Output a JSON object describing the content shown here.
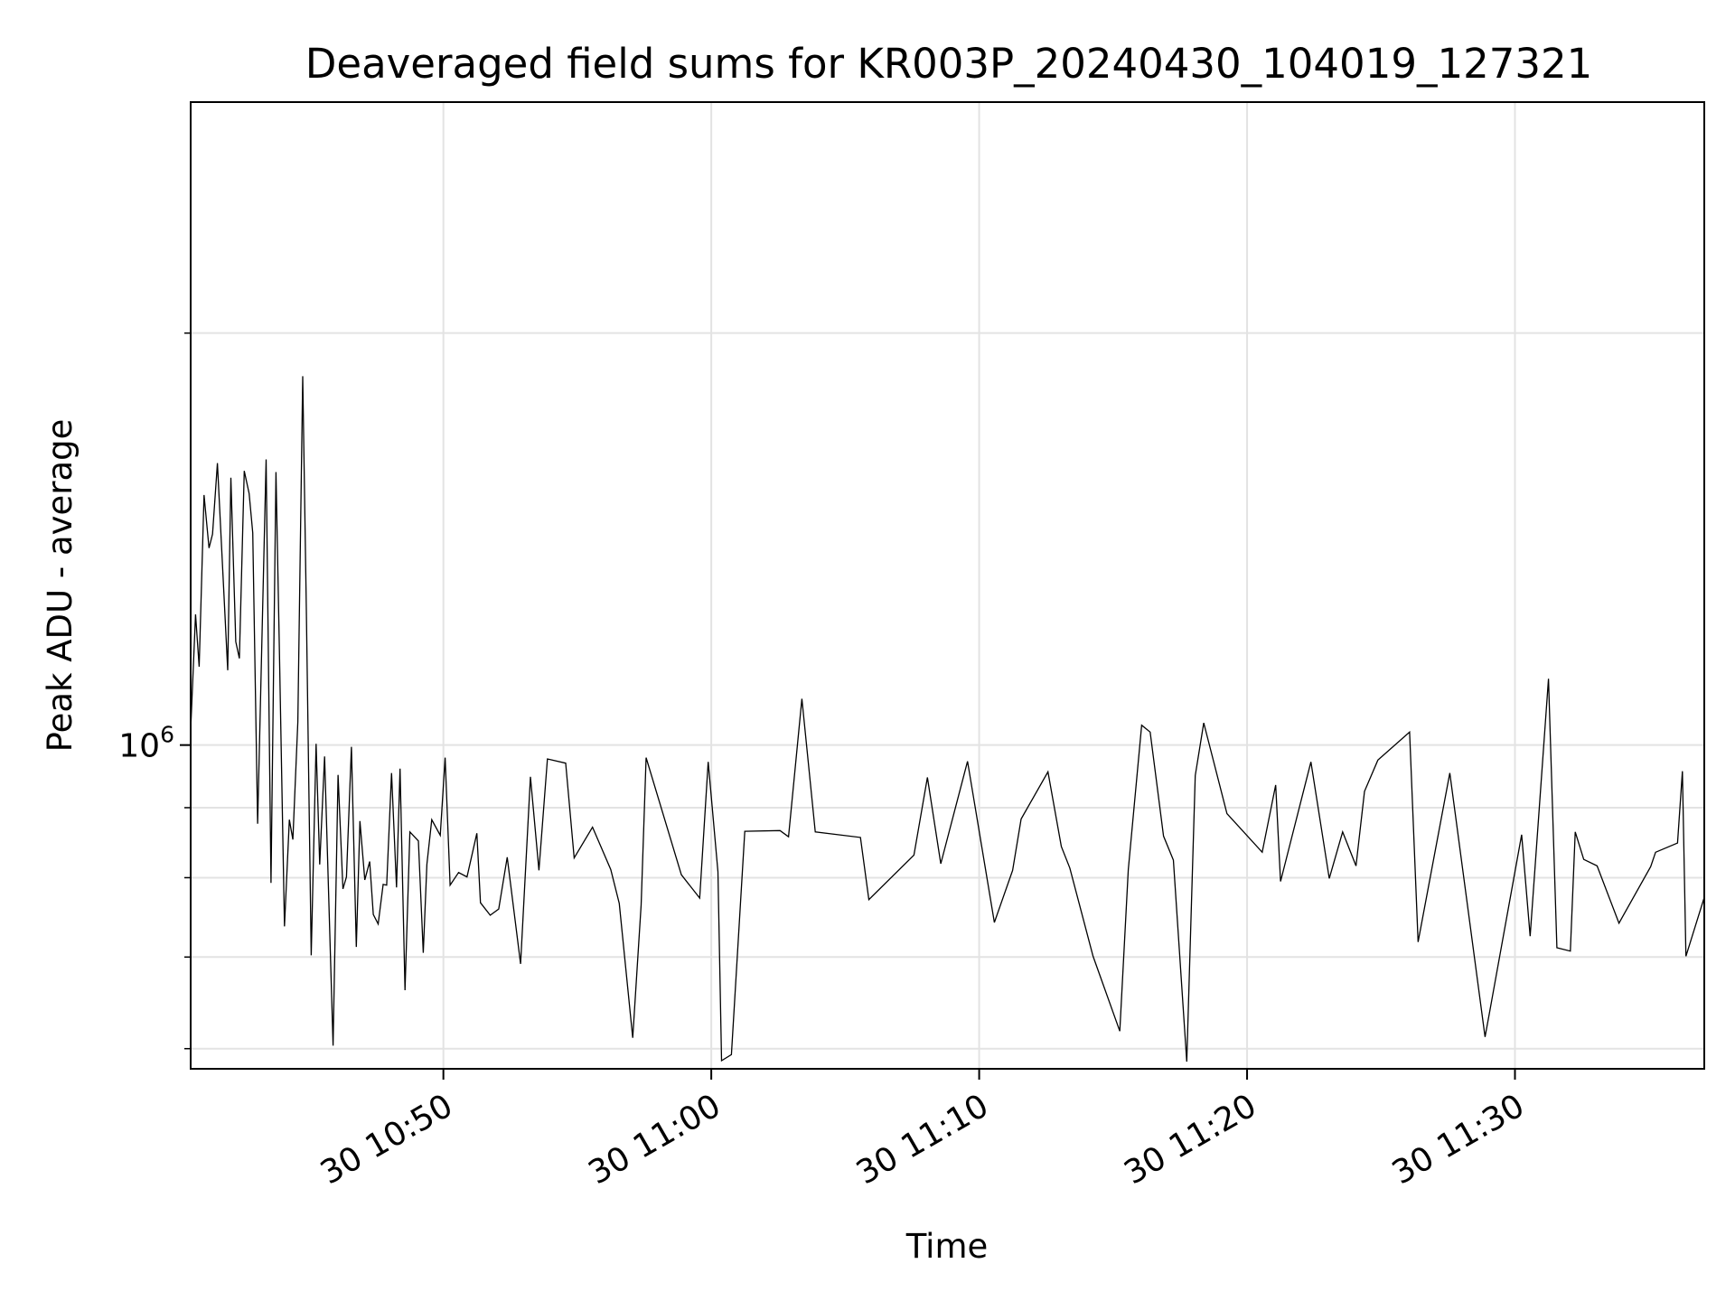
{
  "chart_data": {
    "type": "line",
    "title": "Deaveraged field sums for KR003P_20240430_104019_127321",
    "xlabel": "Time",
    "ylabel": "Peak ADU - average",
    "yscale": "log",
    "grid": true,
    "xlim": [
      "2024-04-30 10:40:34",
      "2024-04-30 11:37:04"
    ],
    "ylim": [
      580000,
      2950000
    ],
    "x_ticks": [
      {
        "value": "2024-04-30 10:50",
        "label": "30 10:50"
      },
      {
        "value": "2024-04-30 11:00",
        "label": "30 11:00"
      },
      {
        "value": "2024-04-30 11:10",
        "label": "30 11:10"
      },
      {
        "value": "2024-04-30 11:20",
        "label": "30 11:20"
      },
      {
        "value": "2024-04-30 11:30",
        "label": "30 11:30"
      }
    ],
    "y_major_ticks": [
      {
        "value": 1000000,
        "base": "10",
        "exp": "6"
      }
    ],
    "y_minor_ticks": [
      600000,
      700000,
      800000,
      900000,
      2000000
    ],
    "series": [
      {
        "color": "#000000",
        "points": [
          [
            "2024-04-30 10:40:34",
            1026000
          ],
          [
            "2024-04-30 10:40:45",
            1246000
          ],
          [
            "2024-04-30 10:40:53",
            1141000
          ],
          [
            "2024-04-30 10:41:04",
            1523000
          ],
          [
            "2024-04-30 10:41:15",
            1393000
          ],
          [
            "2024-04-30 10:41:23",
            1426000
          ],
          [
            "2024-04-30 10:41:34",
            1607000
          ],
          [
            "2024-04-30 10:41:57",
            1134000
          ],
          [
            "2024-04-30 10:42:04",
            1568000
          ],
          [
            "2024-04-30 10:42:15",
            1190000
          ],
          [
            "2024-04-30 10:42:23",
            1157000
          ],
          [
            "2024-04-30 10:42:34",
            1586000
          ],
          [
            "2024-04-30 10:42:45",
            1527000
          ],
          [
            "2024-04-30 10:42:53",
            1429000
          ],
          [
            "2024-04-30 10:43:04",
            876000
          ],
          [
            "2024-04-30 10:43:23",
            1617000
          ],
          [
            "2024-04-30 10:43:34",
            793000
          ],
          [
            "2024-04-30 10:43:45",
            1583000
          ],
          [
            "2024-04-30 10:43:53",
            1162000
          ],
          [
            "2024-04-30 10:44:04",
            737000
          ],
          [
            "2024-04-30 10:44:15",
            882000
          ],
          [
            "2024-04-30 10:44:23",
            853000
          ],
          [
            "2024-04-30 10:44:34",
            1040000
          ],
          [
            "2024-04-30 10:44:45",
            1860000
          ],
          [
            "2024-04-30 10:44:53",
            1257000
          ],
          [
            "2024-04-30 10:45:04",
            702000
          ],
          [
            "2024-04-30 10:45:15",
            1002000
          ],
          [
            "2024-04-30 10:45:23",
            818000
          ],
          [
            "2024-04-30 10:45:34",
            981000
          ],
          [
            "2024-04-30 10:45:53",
            603000
          ],
          [
            "2024-04-30 10:46:04",
            951000
          ],
          [
            "2024-04-30 10:46:15",
            785000
          ],
          [
            "2024-04-30 10:46:23",
            801000
          ],
          [
            "2024-04-30 10:46:34",
            997000
          ],
          [
            "2024-04-30 10:46:45",
            712000
          ],
          [
            "2024-04-30 10:46:53",
            880000
          ],
          [
            "2024-04-30 10:47:04",
            797000
          ],
          [
            "2024-04-30 10:47:15",
            822000
          ],
          [
            "2024-04-30 10:47:23",
            752000
          ],
          [
            "2024-04-30 10:47:34",
            740000
          ],
          [
            "2024-04-30 10:47:45",
            791000
          ],
          [
            "2024-04-30 10:47:53",
            790000
          ],
          [
            "2024-04-30 10:48:04",
            954000
          ],
          [
            "2024-04-30 10:48:15",
            787000
          ],
          [
            "2024-04-30 10:48:23",
            961000
          ],
          [
            "2024-04-30 10:48:34",
            662000
          ],
          [
            "2024-04-30 10:48:45",
            864000
          ],
          [
            "2024-04-30 10:49:04",
            851000
          ],
          [
            "2024-04-30 10:49:15",
            705000
          ],
          [
            "2024-04-30 10:49:23",
            818000
          ],
          [
            "2024-04-30 10:49:34",
            882000
          ],
          [
            "2024-04-30 10:49:53",
            859000
          ],
          [
            "2024-04-30 10:50:04",
            979000
          ],
          [
            "2024-04-30 10:50:15",
            790000
          ],
          [
            "2024-04-30 10:50:34",
            807000
          ],
          [
            "2024-04-30 10:50:53",
            801000
          ],
          [
            "2024-04-30 10:51:15",
            862000
          ],
          [
            "2024-04-30 10:51:23",
            767000
          ],
          [
            "2024-04-30 10:51:45",
            751000
          ],
          [
            "2024-04-30 10:52:04",
            759000
          ],
          [
            "2024-04-30 10:52:23",
            828000
          ],
          [
            "2024-04-30 10:52:53",
            692000
          ],
          [
            "2024-04-30 10:53:15",
            948000
          ],
          [
            "2024-04-30 10:53:34",
            810000
          ],
          [
            "2024-04-30 10:53:53",
            977000
          ],
          [
            "2024-04-30 10:54:34",
            970000
          ],
          [
            "2024-04-30 10:54:53",
            827000
          ],
          [
            "2024-04-30 10:55:34",
            871000
          ],
          [
            "2024-04-30 10:56:15",
            811000
          ],
          [
            "2024-04-30 10:56:34",
            766000
          ],
          [
            "2024-04-30 10:57:04",
            611000
          ],
          [
            "2024-04-30 10:57:23",
            764000
          ],
          [
            "2024-04-30 10:57:34",
            979000
          ],
          [
            "2024-04-30 10:58:53",
            804000
          ],
          [
            "2024-04-30 10:59:34",
            773000
          ],
          [
            "2024-04-30 10:59:53",
            972000
          ],
          [
            "2024-04-30 11:00:15",
            808000
          ],
          [
            "2024-04-30 11:00:23",
            588000
          ],
          [
            "2024-04-30 11:00:45",
            594000
          ],
          [
            "2024-04-30 11:01:15",
            865000
          ],
          [
            "2024-04-30 11:02:34",
            866000
          ],
          [
            "2024-04-30 11:02:53",
            857000
          ],
          [
            "2024-04-30 11:03:23",
            1081000
          ],
          [
            "2024-04-30 11:03:53",
            864000
          ],
          [
            "2024-04-30 11:05:34",
            856000
          ],
          [
            "2024-04-30 11:05:53",
            771000
          ],
          [
            "2024-04-30 11:07:34",
            831000
          ],
          [
            "2024-04-30 11:08:04",
            947000
          ],
          [
            "2024-04-30 11:08:34",
            819000
          ],
          [
            "2024-04-30 11:09:34",
            973000
          ],
          [
            "2024-04-30 11:10:34",
            742000
          ],
          [
            "2024-04-30 11:11:15",
            810000
          ],
          [
            "2024-04-30 11:11:34",
            883000
          ],
          [
            "2024-04-30 11:12:34",
            956000
          ],
          [
            "2024-04-30 11:13:04",
            843000
          ],
          [
            "2024-04-30 11:13:23",
            813000
          ],
          [
            "2024-04-30 11:14:15",
            701000
          ],
          [
            "2024-04-30 11:15:15",
            618000
          ],
          [
            "2024-04-30 11:15:34",
            811000
          ],
          [
            "2024-04-30 11:16:04",
            1034000
          ],
          [
            "2024-04-30 11:16:23",
            1022000
          ],
          [
            "2024-04-30 11:16:53",
            858000
          ],
          [
            "2024-04-30 11:17:15",
            824000
          ],
          [
            "2024-04-30 11:17:45",
            587000
          ],
          [
            "2024-04-30 11:18:04",
            950000
          ],
          [
            "2024-04-30 11:18:23",
            1038000
          ],
          [
            "2024-04-30 11:19:15",
            891000
          ],
          [
            "2024-04-30 11:20:34",
            835000
          ],
          [
            "2024-04-30 11:21:04",
            935000
          ],
          [
            "2024-04-30 11:21:15",
            795000
          ],
          [
            "2024-04-30 11:22:23",
            972000
          ],
          [
            "2024-04-30 11:23:04",
            799000
          ],
          [
            "2024-04-30 11:23:34",
            864000
          ],
          [
            "2024-04-30 11:24:04",
            816000
          ],
          [
            "2024-04-30 11:24:23",
            925000
          ],
          [
            "2024-04-30 11:24:53",
            975000
          ],
          [
            "2024-04-30 11:26:04",
            1022000
          ],
          [
            "2024-04-30 11:26:23",
            718000
          ],
          [
            "2024-04-30 11:27:34",
            954000
          ],
          [
            "2024-04-30 11:28:53",
            612000
          ],
          [
            "2024-04-30 11:29:04",
            640000
          ],
          [
            "2024-04-30 11:30:15",
            860000
          ],
          [
            "2024-04-30 11:30:34",
            725000
          ],
          [
            "2024-04-30 11:31:15",
            1118000
          ],
          [
            "2024-04-30 11:31:34",
            711000
          ],
          [
            "2024-04-30 11:32:04",
            707000
          ],
          [
            "2024-04-30 11:32:15",
            864000
          ],
          [
            "2024-04-30 11:32:34",
            825000
          ],
          [
            "2024-04-30 11:33:04",
            816000
          ],
          [
            "2024-04-30 11:33:53",
            741000
          ],
          [
            "2024-04-30 11:35:04",
            815000
          ],
          [
            "2024-04-30 11:35:15",
            835000
          ],
          [
            "2024-04-30 11:36:04",
            848000
          ],
          [
            "2024-04-30 11:36:15",
            957000
          ],
          [
            "2024-04-30 11:36:23",
            701000
          ],
          [
            "2024-04-30 11:37:04",
            774000
          ]
        ]
      }
    ]
  }
}
